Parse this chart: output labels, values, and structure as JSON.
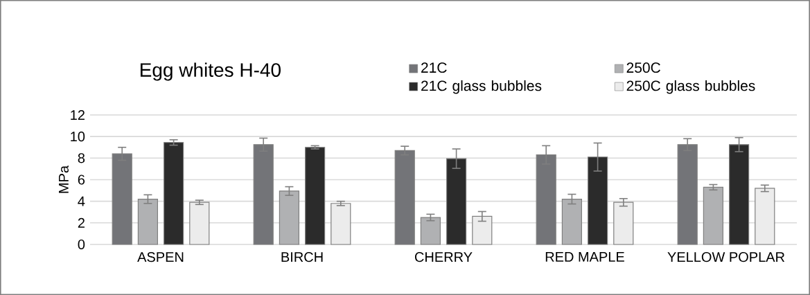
{
  "chart_data": {
    "type": "bar",
    "title": "Egg whites H-40",
    "ylabel": "MPa",
    "categories": [
      "ASPEN",
      "BIRCH",
      "CHERRY",
      "RED MAPLE",
      "YELLOW POPLAR"
    ],
    "series": [
      {
        "name": "21C",
        "color": "#737478",
        "values": [
          8.4,
          9.25,
          8.7,
          8.3,
          9.25
        ],
        "errors": [
          0.6,
          0.6,
          0.4,
          0.85,
          0.55
        ]
      },
      {
        "name": "250C",
        "color": "#b0b1b3",
        "values": [
          4.2,
          4.95,
          2.5,
          4.2,
          5.3
        ],
        "errors": [
          0.4,
          0.4,
          0.3,
          0.45,
          0.25
        ]
      },
      {
        "name": "21C glass bubbles",
        "color": "#2b2b2b",
        "values": [
          9.45,
          9.0,
          7.95,
          8.1,
          9.25
        ],
        "errors": [
          0.25,
          0.15,
          0.9,
          1.3,
          0.65
        ]
      },
      {
        "name": "250C glass bubbles",
        "color": "#ececec",
        "values": [
          3.9,
          3.8,
          2.6,
          3.9,
          5.2
        ],
        "errors": [
          0.2,
          0.2,
          0.45,
          0.35,
          0.3
        ]
      }
    ],
    "ylim": [
      0,
      12
    ],
    "yticks": [
      0,
      2,
      4,
      6,
      8,
      10,
      12
    ],
    "grid": "y",
    "legend": "top right"
  }
}
